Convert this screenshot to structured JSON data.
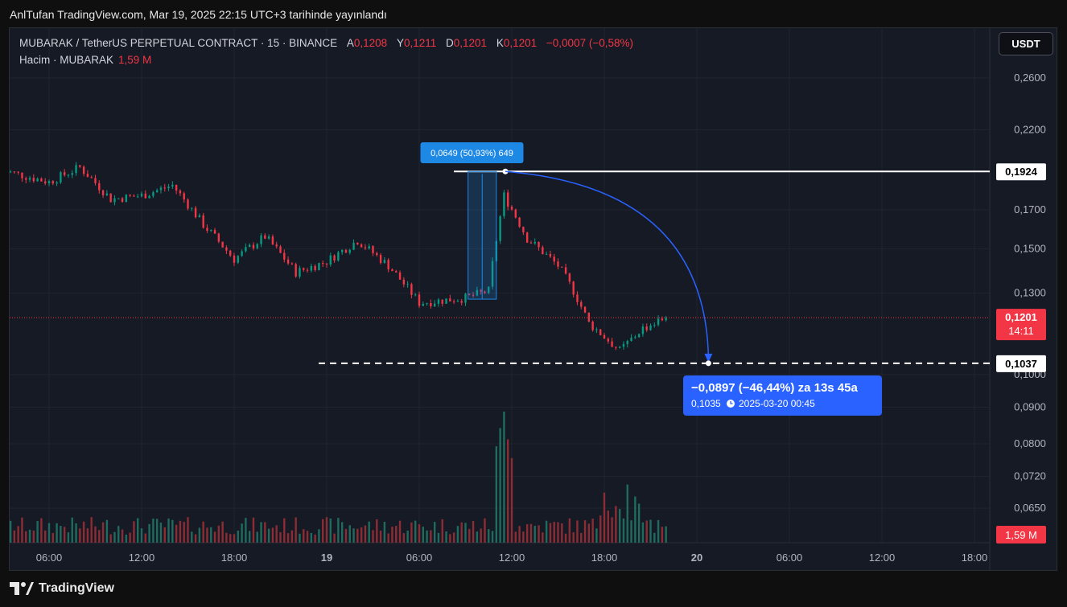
{
  "publish_text": "AnlTufan TradingView.com, Mar 19, 2025 22:15 UTC+3 tarihinde yayınlandı",
  "legend": {
    "symbol": "MUBARAK / TetherUS PERPETUAL CONTRACT · 15 · BINANCE",
    "open_label": "A",
    "open": "0,1208",
    "high_label": "Y",
    "high": "0,1211",
    "low_label": "D",
    "low": "0,1201",
    "close_label": "K",
    "close": "0,1201",
    "change": "−0,0007 (−0,58%)",
    "volume_label": "Hacim · MUBARAK",
    "volume": "1,59 M"
  },
  "currency_button": "USDT",
  "price_axis": [
    "0,2600",
    "0,2200",
    "0,1700",
    "0,1500",
    "0,1300",
    "0,1000",
    "0,0900",
    "0,0800",
    "0,0720",
    "0,0650"
  ],
  "time_axis": [
    "06:00",
    "12:00",
    "18:00",
    "19",
    "06:00",
    "12:00",
    "18:00",
    "20",
    "06:00",
    "12:00",
    "18:00"
  ],
  "labels": {
    "level_high": "0,1924",
    "level_low": "0,1037",
    "last_price": "0,1201",
    "countdown": "14:11",
    "last_volume": "1,59 M",
    "measure": "0,0649 (50,93%) 649",
    "forecast_main": "−0,0897 (−46,44%) za 13s 45a",
    "forecast_price": "0,1035",
    "forecast_time": "2025-03-20  00:45"
  },
  "brand": "TradingView",
  "colors": {
    "up": "#089981",
    "down": "#f23645",
    "accent": "#2962ff",
    "measure": "#1e88e5"
  },
  "chart_data": {
    "type": "candlestick",
    "interval": "15",
    "exchange": "BINANCE",
    "x": [
      "03-18 06:00",
      "03-18 12:00",
      "03-18 18:00",
      "03-19 00:00",
      "03-19 06:00",
      "03-19 12:00",
      "03-19 18:00",
      "03-20 00:00",
      "03-20 06:00",
      "03-20 12:00",
      "03-20 18:00"
    ],
    "close_path": [
      {
        "t": "03-18 03:00",
        "price": 0.193
      },
      {
        "t": "03-18 06:00",
        "price": 0.186
      },
      {
        "t": "03-18 08:00",
        "price": 0.195
      },
      {
        "t": "03-18 10:00",
        "price": 0.176
      },
      {
        "t": "03-18 12:00",
        "price": 0.178
      },
      {
        "t": "03-18 14:00",
        "price": 0.184
      },
      {
        "t": "03-18 16:00",
        "price": 0.162
      },
      {
        "t": "03-18 18:00",
        "price": 0.145
      },
      {
        "t": "03-18 20:00",
        "price": 0.156
      },
      {
        "t": "03-18 22:00",
        "price": 0.139
      },
      {
        "t": "03-19 00:00",
        "price": 0.144
      },
      {
        "t": "03-19 02:00",
        "price": 0.154
      },
      {
        "t": "03-19 04:00",
        "price": 0.142
      },
      {
        "t": "03-19 06:00",
        "price": 0.126
      },
      {
        "t": "03-19 09:00",
        "price": 0.128
      },
      {
        "t": "03-19 10:30",
        "price": 0.131
      },
      {
        "t": "03-19 11:30",
        "price": 0.178
      },
      {
        "t": "03-19 13:00",
        "price": 0.155
      },
      {
        "t": "03-19 15:00",
        "price": 0.142
      },
      {
        "t": "03-19 16:00",
        "price": 0.131
      },
      {
        "t": "03-19 17:00",
        "price": 0.118
      },
      {
        "t": "03-19 19:00",
        "price": 0.108
      },
      {
        "t": "03-19 20:30",
        "price": 0.116
      },
      {
        "t": "03-19 22:00",
        "price": 0.1201
      }
    ],
    "high": 0.1924,
    "low": 0.1037,
    "last": 0.1201,
    "measure": {
      "change": 0.0649,
      "percent": 50.93,
      "bars": 649
    },
    "forecast": {
      "change": -0.0897,
      "percent": -46.44,
      "price": 0.1035,
      "time": "2025-03-20 00:45"
    },
    "last_volume": "1,59 M",
    "volume_peak_time": "03-19 11:30"
  }
}
